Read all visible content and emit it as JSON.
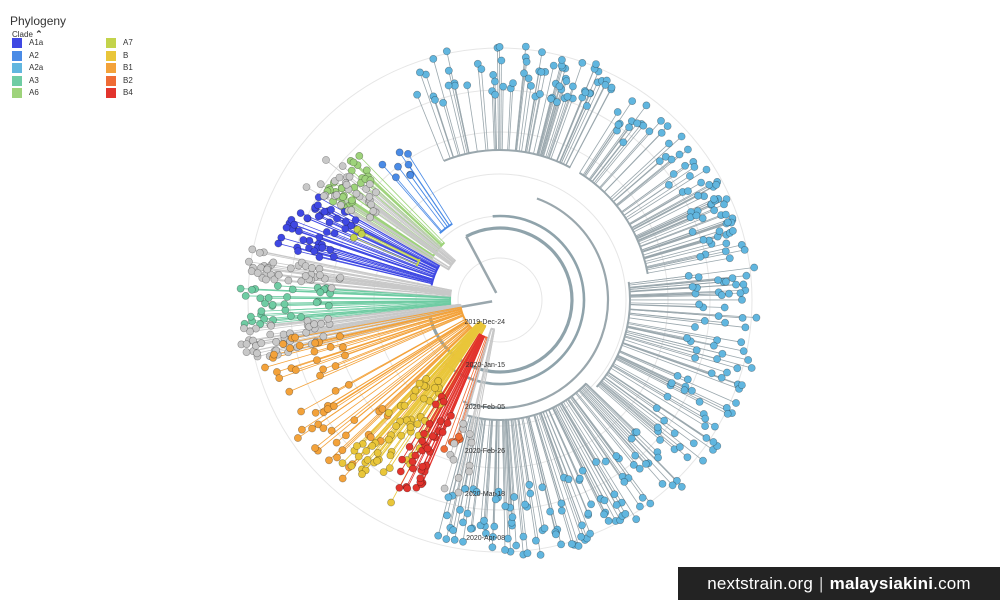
{
  "header": {
    "title": "Phylogeny",
    "legend_toggle_label": "Clade",
    "legend_toggle_icon": "chevron-up-icon"
  },
  "legend": [
    {
      "label": "A1a",
      "color": "#3f48e3"
    },
    {
      "label": "A2",
      "color": "#4a8be6"
    },
    {
      "label": "A2a",
      "color": "#61b6df"
    },
    {
      "label": "A3",
      "color": "#6fcca3"
    },
    {
      "label": "A6",
      "color": "#9ed37b"
    },
    {
      "label": "A7",
      "color": "#c3d34b"
    },
    {
      "label": "B",
      "color": "#e9c63a"
    },
    {
      "label": "B1",
      "color": "#f3a23a"
    },
    {
      "label": "B2",
      "color": "#ef6b35"
    },
    {
      "label": "B4",
      "color": "#e2342d"
    }
  ],
  "time_axis": {
    "labels": [
      "2019-Dec-24",
      "2020-Jan-15",
      "2020-Feb-05",
      "2020-Feb-26",
      "2020-Mar-18",
      "2020-Apr-08"
    ]
  },
  "colors": {
    "unassigned": "#c8c8c8",
    "branch_default": "#9aa7ad",
    "ring": "#e6e6e6"
  },
  "watermark": {
    "site_1": "nextstrain.org",
    "separator": "|",
    "site_2": "malaysiakini",
    "site_2_suffix": ".com"
  }
}
